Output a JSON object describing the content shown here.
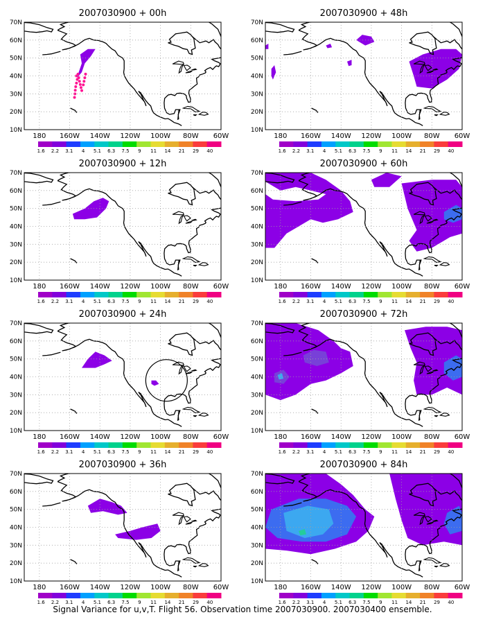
{
  "colors": {
    "colorbar": [
      "#a000c8",
      "#8200dc",
      "#1e3cff",
      "#00a0ff",
      "#00c8c8",
      "#00d28c",
      "#00dc00",
      "#a0e632",
      "#e6dc32",
      "#e6af2d",
      "#f08228",
      "#fa3c3c",
      "#f00082"
    ],
    "field_light": "#8c00e6",
    "field_mid": "#7840d8",
    "field_blue": "#3c6cf0",
    "field_cyan": "#3ca8f0",
    "field_green": "#24cc9c",
    "obs_dots": "#ff1493",
    "coast": "#000000",
    "grid": "#a0a0a0"
  },
  "lon_labels": [
    "180",
    "160W",
    "140W",
    "120W",
    "100W",
    "80W",
    "60W"
  ],
  "lat_labels": [
    "10N",
    "20N",
    "30N",
    "40N",
    "50N",
    "60N",
    "70N"
  ],
  "colorbar_labels": [
    "1.6",
    "2.2",
    "3.1",
    "4",
    "5.1",
    "6.3",
    "7.5",
    "9",
    "11",
    "14",
    "21",
    "29",
    "40"
  ],
  "panels": [
    {
      "title": "2007030900 + 00h"
    },
    {
      "title": "2007030900 + 48h"
    },
    {
      "title": "2007030900 + 12h"
    },
    {
      "title": "2007030900 + 60h"
    },
    {
      "title": "2007030900 + 24h"
    },
    {
      "title": "2007030900 + 72h"
    },
    {
      "title": "2007030900 + 36h"
    },
    {
      "title": "2007030900 + 84h"
    }
  ],
  "caption": "Signal Variance for u,v,T. Flight 56. Observation time 2007030900. 2007030400 ensemble."
}
